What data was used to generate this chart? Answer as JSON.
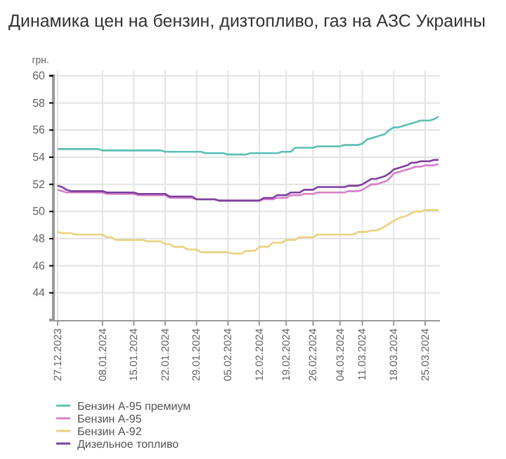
{
  "chart_data": {
    "type": "line",
    "title": "Динамика цен на бензин, дизтопливо, газ на АЗС Украины",
    "ylabel": "грн.",
    "categories": [
      "27.12.2023",
      null,
      null,
      null,
      null,
      null,
      null,
      null,
      null,
      null,
      "08.01.2024",
      null,
      null,
      null,
      null,
      null,
      null,
      "15.01.2024",
      null,
      null,
      null,
      null,
      null,
      null,
      "22.01.2024",
      null,
      null,
      null,
      null,
      null,
      null,
      "29.01.2024",
      null,
      null,
      null,
      null,
      null,
      null,
      "05.02.2024",
      null,
      null,
      null,
      null,
      null,
      null,
      "12.02.2024",
      null,
      null,
      null,
      null,
      null,
      "19.02.2024",
      null,
      null,
      null,
      null,
      null,
      "26.02.2024",
      null,
      null,
      null,
      null,
      null,
      "04.03.2024",
      null,
      null,
      null,
      null,
      "11.03.2024",
      null,
      null,
      null,
      null,
      null,
      null,
      "18.03.2024",
      null,
      null,
      null,
      null,
      null,
      null,
      "25.03.2024",
      null,
      null,
      null
    ],
    "ylim": [
      42,
      60
    ],
    "yticks": [
      44,
      46,
      48,
      50,
      52,
      54,
      56,
      58,
      60
    ],
    "grid": true,
    "legend": "bottom",
    "marker": "none",
    "line_style": "solid",
    "series": [
      {
        "name": "Бензин А-95 премиум",
        "color": "#5bbfb5",
        "values": [
          54.6,
          54.6,
          54.6,
          54.6,
          54.6,
          54.6,
          54.6,
          54.6,
          54.6,
          54.6,
          54.5,
          54.5,
          54.5,
          54.5,
          54.5,
          54.5,
          54.5,
          54.5,
          54.5,
          54.5,
          54.5,
          54.5,
          54.5,
          54.5,
          54.4,
          54.4,
          54.4,
          54.4,
          54.4,
          54.4,
          54.4,
          54.4,
          54.4,
          54.3,
          54.3,
          54.3,
          54.3,
          54.3,
          54.2,
          54.2,
          54.2,
          54.2,
          54.2,
          54.3,
          54.3,
          54.3,
          54.3,
          54.3,
          54.3,
          54.3,
          54.4,
          54.4,
          54.4,
          54.7,
          54.7,
          54.7,
          54.7,
          54.7,
          54.8,
          54.8,
          54.8,
          54.8,
          54.8,
          54.8,
          54.9,
          54.9,
          54.9,
          54.9,
          55.0,
          55.3,
          55.4,
          55.5,
          55.6,
          55.7,
          56.0,
          56.2,
          56.2,
          56.3,
          56.4,
          56.5,
          56.6,
          56.7,
          56.7,
          56.7,
          56.8,
          57.0
        ]
      },
      {
        "name": "Бензин А-95",
        "color": "#d77fc9",
        "values": [
          51.6,
          51.5,
          51.4,
          51.4,
          51.4,
          51.4,
          51.4,
          51.4,
          51.4,
          51.4,
          51.4,
          51.3,
          51.3,
          51.3,
          51.3,
          51.3,
          51.3,
          51.3,
          51.2,
          51.2,
          51.2,
          51.2,
          51.2,
          51.2,
          51.2,
          51.0,
          51.0,
          51.0,
          51.0,
          51.0,
          51.0,
          50.9,
          50.9,
          50.9,
          50.9,
          50.9,
          50.8,
          50.8,
          50.8,
          50.8,
          50.8,
          50.8,
          50.8,
          50.8,
          50.8,
          50.8,
          50.9,
          50.9,
          50.9,
          51.0,
          51.0,
          51.0,
          51.2,
          51.2,
          51.2,
          51.3,
          51.3,
          51.3,
          51.4,
          51.4,
          51.4,
          51.4,
          51.4,
          51.4,
          51.4,
          51.5,
          51.5,
          51.5,
          51.6,
          51.8,
          52.0,
          52.0,
          52.1,
          52.2,
          52.4,
          52.8,
          52.9,
          53.0,
          53.1,
          53.2,
          53.3,
          53.3,
          53.4,
          53.4,
          53.4,
          53.5
        ]
      },
      {
        "name": "Бензин А-92",
        "color": "#e8d27f",
        "values": [
          48.5,
          48.4,
          48.4,
          48.4,
          48.3,
          48.3,
          48.3,
          48.3,
          48.3,
          48.3,
          48.3,
          48.1,
          48.1,
          47.9,
          47.9,
          47.9,
          47.9,
          47.9,
          47.9,
          47.9,
          47.8,
          47.8,
          47.8,
          47.8,
          47.6,
          47.6,
          47.4,
          47.4,
          47.4,
          47.2,
          47.2,
          47.2,
          47.0,
          47.0,
          47.0,
          47.0,
          47.0,
          47.0,
          47.0,
          46.9,
          46.9,
          46.9,
          47.1,
          47.1,
          47.1,
          47.4,
          47.4,
          47.4,
          47.7,
          47.7,
          47.7,
          47.9,
          47.9,
          47.9,
          48.1,
          48.1,
          48.1,
          48.1,
          48.3,
          48.3,
          48.3,
          48.3,
          48.3,
          48.3,
          48.3,
          48.3,
          48.3,
          48.5,
          48.5,
          48.5,
          48.6,
          48.6,
          48.7,
          48.9,
          49.1,
          49.3,
          49.5,
          49.6,
          49.7,
          49.9,
          50.0,
          50.0,
          50.1,
          50.1,
          50.1,
          50.1
        ]
      },
      {
        "name": "Дизельное топливо",
        "color": "#7d3f9e",
        "values": [
          51.9,
          51.8,
          51.6,
          51.5,
          51.5,
          51.5,
          51.5,
          51.5,
          51.5,
          51.5,
          51.5,
          51.4,
          51.4,
          51.4,
          51.4,
          51.4,
          51.4,
          51.4,
          51.3,
          51.3,
          51.3,
          51.3,
          51.3,
          51.3,
          51.3,
          51.1,
          51.1,
          51.1,
          51.1,
          51.1,
          51.1,
          50.9,
          50.9,
          50.9,
          50.9,
          50.9,
          50.8,
          50.8,
          50.8,
          50.8,
          50.8,
          50.8,
          50.8,
          50.8,
          50.8,
          50.8,
          51.0,
          51.0,
          51.0,
          51.2,
          51.2,
          51.2,
          51.4,
          51.4,
          51.4,
          51.6,
          51.6,
          51.6,
          51.8,
          51.8,
          51.8,
          51.8,
          51.8,
          51.8,
          51.8,
          51.9,
          51.9,
          51.9,
          52.0,
          52.2,
          52.4,
          52.4,
          52.5,
          52.6,
          52.8,
          53.1,
          53.2,
          53.3,
          53.4,
          53.6,
          53.6,
          53.7,
          53.7,
          53.7,
          53.8,
          53.8
        ]
      }
    ]
  }
}
